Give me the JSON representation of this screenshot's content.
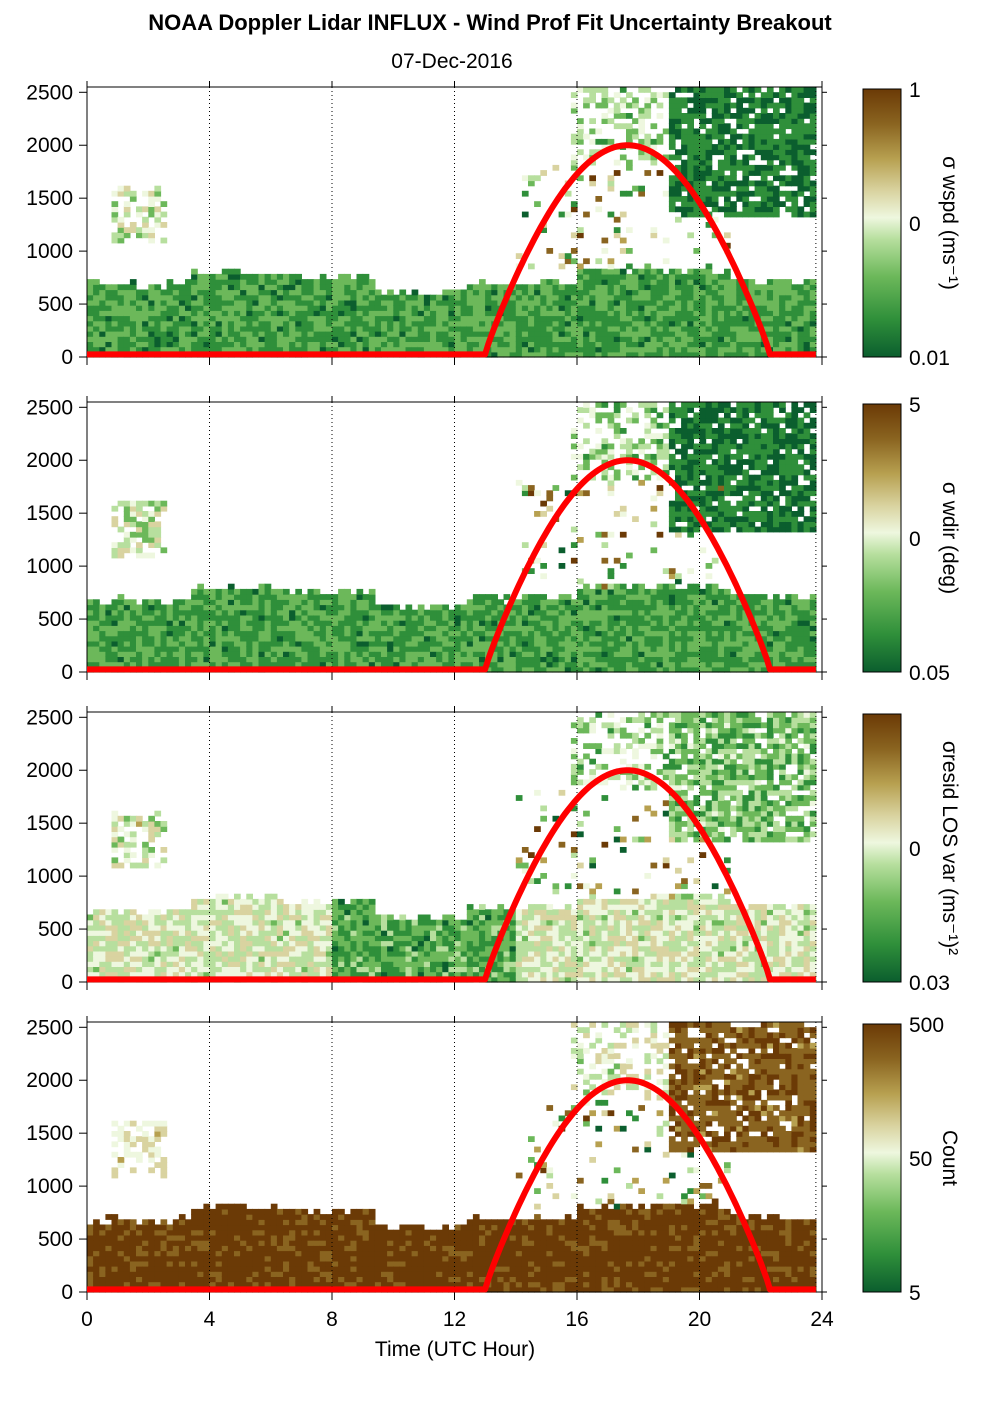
{
  "title": "NOAA Doppler Lidar INFLUX - Wind Prof Fit Uncertainty Breakout",
  "subtitle": "07-Dec-2016",
  "colors": {
    "sun_curve": "#ff0000",
    "colormap": [
      "#0b5e2e",
      "#2f8f3a",
      "#6cb85a",
      "#b7df9e",
      "#eef7df",
      "#d9d3a0",
      "#b7a050",
      "#8a6420",
      "#6b3a06"
    ]
  },
  "chart_data": [
    {
      "type": "heatmap",
      "xlim": [
        0,
        24
      ],
      "ylim": [
        0,
        2550
      ],
      "x_ticks": [
        0,
        4,
        8,
        12,
        16,
        20,
        24
      ],
      "y_ticks": [
        0,
        500,
        1000,
        1500,
        2000,
        2500
      ],
      "y_tick_labels": [
        "0",
        "500",
        "1000",
        "1500",
        "2000",
        "2500"
      ],
      "grid": "vertical dotted at 4-hour intervals",
      "colorbar": {
        "label": "σ wspd (ms⁻¹)",
        "tick_labels": [
          "1",
          "0",
          "0.01"
        ],
        "scale": "log"
      },
      "sun_elevation_curve": {
        "rise_hour": 13.0,
        "set_hour": 22.3,
        "peak_hour": 17.6,
        "peak_height": 2000
      }
    },
    {
      "type": "heatmap",
      "xlim": [
        0,
        24
      ],
      "ylim": [
        0,
        2550
      ],
      "x_ticks": [
        0,
        4,
        8,
        12,
        16,
        20,
        24
      ],
      "y_ticks": [
        0,
        500,
        1000,
        1500,
        2000,
        2500
      ],
      "y_tick_labels": [
        "0",
        "500",
        "1000",
        "1500",
        "2000",
        "2500"
      ],
      "grid": "vertical dotted at 4-hour intervals",
      "colorbar": {
        "label": "σ wdir (deg)",
        "tick_labels": [
          "5",
          "0",
          "0.05"
        ],
        "scale": "log"
      },
      "sun_elevation_curve": {
        "rise_hour": 13.0,
        "set_hour": 22.3,
        "peak_hour": 17.6,
        "peak_height": 2000
      }
    },
    {
      "type": "heatmap",
      "xlim": [
        0,
        24
      ],
      "ylim": [
        0,
        2550
      ],
      "x_ticks": [
        0,
        4,
        8,
        12,
        16,
        20,
        24
      ],
      "y_ticks": [
        0,
        500,
        1000,
        1500,
        2000,
        2500
      ],
      "y_tick_labels": [
        "0",
        "500",
        "1000",
        "1500",
        "2000",
        "2500"
      ],
      "grid": "vertical dotted at 4-hour intervals",
      "colorbar": {
        "label": "σresid LOS var (ms⁻¹)²",
        "tick_labels": [
          "0",
          "0.03"
        ],
        "scale": "log"
      },
      "sun_elevation_curve": {
        "rise_hour": 13.0,
        "set_hour": 22.3,
        "peak_hour": 17.6,
        "peak_height": 2000
      }
    },
    {
      "type": "heatmap",
      "xlim": [
        0,
        24
      ],
      "ylim": [
        0,
        2550
      ],
      "x_ticks": [
        0,
        4,
        8,
        12,
        16,
        20,
        24
      ],
      "x_tick_labels": [
        "0",
        "4",
        "8",
        "12",
        "16",
        "20",
        "24"
      ],
      "xlabel": "Time (UTC Hour)",
      "y_ticks": [
        0,
        500,
        1000,
        1500,
        2000,
        2500
      ],
      "y_tick_labels": [
        "0",
        "500",
        "1000",
        "1500",
        "2000",
        "2500"
      ],
      "grid": "vertical dotted at 4-hour intervals",
      "colorbar": {
        "label": "Count",
        "tick_labels": [
          "500",
          "50",
          "5"
        ],
        "scale": "log"
      },
      "sun_elevation_curve": {
        "rise_hour": 13.0,
        "set_hour": 22.3,
        "peak_hour": 17.6,
        "peak_height": 2000
      }
    }
  ]
}
